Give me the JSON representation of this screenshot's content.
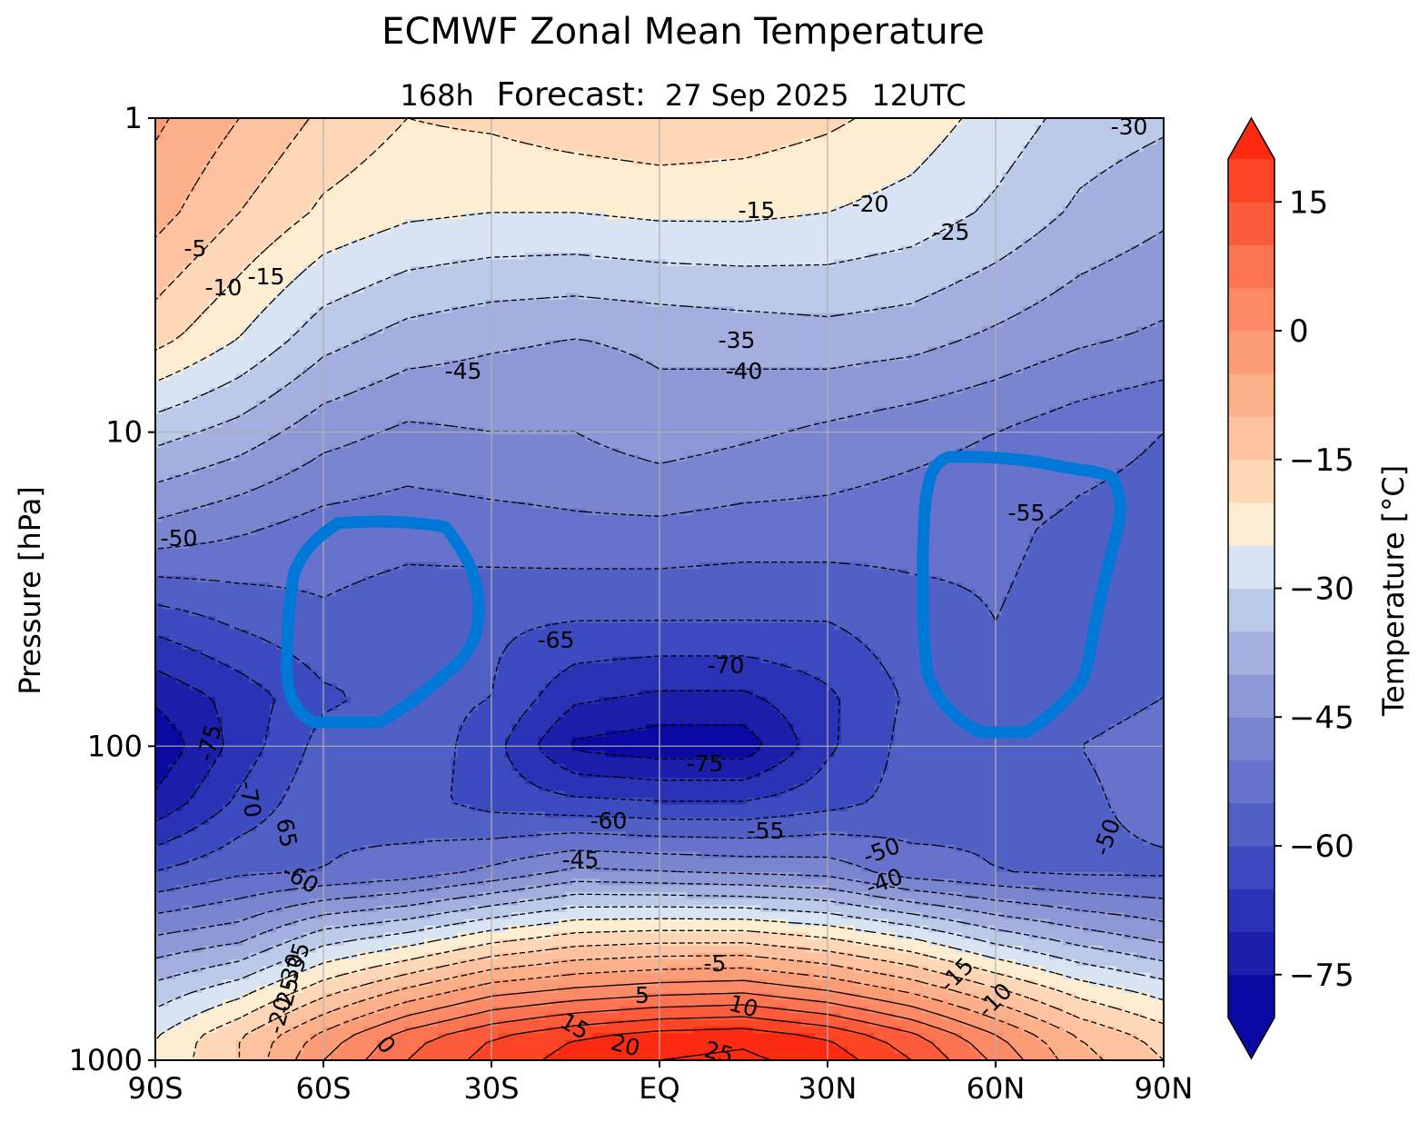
{
  "chart_data": {
    "type": "contour",
    "title": "ECMWF Zonal Mean Temperature",
    "subtitle": {
      "lead": "168h",
      "label": "Forecast:",
      "date": "27 Sep 2025",
      "time": "12UTC"
    },
    "xlabel": "",
    "ylabel": "Pressure [hPa]",
    "x_ticks": [
      "90S",
      "60S",
      "30S",
      "EQ",
      "30N",
      "60N",
      "90N"
    ],
    "x_values": [
      -90,
      -60,
      -30,
      0,
      30,
      60,
      90
    ],
    "y_ticks": [
      "1",
      "10",
      "100",
      "1000"
    ],
    "y_values": [
      1,
      10,
      100,
      1000
    ],
    "y_scale": "log",
    "grid": true,
    "colorbar": {
      "label": "Temperature [°C]",
      "min": -80,
      "max": 20,
      "step": 5,
      "extend": "both",
      "ticks": [
        15,
        0,
        -15,
        -30,
        -45,
        -60,
        -75
      ],
      "tick_labels": [
        "15",
        "0",
        "−15",
        "−30",
        "−45",
        "−60",
        "−75"
      ],
      "colors": [
        "#0a0aa3",
        "#1a1ea9",
        "#2a33b6",
        "#3c4bc0",
        "#5060c5",
        "#6672cb",
        "#7a85d0",
        "#8e98d6",
        "#a4aedf",
        "#bccae9",
        "#d8e4f4",
        "#fdedd1",
        "#fdd7b6",
        "#fdc2a0",
        "#fcb08a",
        "#fc9c77",
        "#fc8a66",
        "#fc7452",
        "#fc5c3c",
        "#fc4524"
      ],
      "extend_low_color": "#0a0aa3",
      "extend_high_color": "#fc2a10"
    },
    "temperature_grid": {
      "lat": [
        -90,
        -75,
        -60,
        -45,
        -30,
        -15,
        0,
        15,
        30,
        45,
        60,
        75,
        90
      ],
      "pressure_hpa": [
        1,
        2,
        5,
        10,
        20,
        40,
        70,
        100,
        150,
        250,
        400,
        600,
        850,
        1000
      ],
      "values": [
        [
          -4,
          -10,
          -16,
          -20,
          -19,
          -17,
          -16,
          -17,
          -19,
          -22,
          -27,
          -32,
          -34
        ],
        [
          -8,
          -15,
          -21,
          -24,
          -25,
          -25,
          -24,
          -24,
          -25,
          -27,
          -31,
          -36,
          -39
        ],
        [
          -18,
          -25,
          -33,
          -37,
          -39,
          -40,
          -39,
          -38,
          -37,
          -38,
          -41,
          -44,
          -46
        ],
        [
          -33,
          -37,
          -43,
          -46,
          -45,
          -45,
          -42,
          -44,
          -46,
          -48,
          -50,
          -53,
          -55
        ],
        [
          -46,
          -49,
          -52,
          -53,
          -52,
          -51,
          -51,
          -52,
          -52,
          -53,
          -54,
          -56,
          -57
        ],
        [
          -63,
          -59,
          -56,
          -58,
          -59,
          -60,
          -60,
          -60,
          -60,
          -57,
          -55,
          -57,
          -57
        ],
        [
          -74,
          -68,
          -61,
          -58,
          -60,
          -69,
          -71,
          -71,
          -66,
          -59,
          -56,
          -57,
          -55
        ],
        [
          -79,
          -68,
          -58,
          -56,
          -63,
          -76,
          -78,
          -78,
          -66,
          -58,
          -56,
          -55,
          -53
        ],
        [
          -74,
          -64,
          -56,
          -58,
          -62,
          -64,
          -65,
          -65,
          -62,
          -58,
          -56,
          -56,
          -53
        ],
        [
          -60,
          -56,
          -55,
          -53,
          -49,
          -44,
          -45,
          -46,
          -47,
          -53,
          -55,
          -56,
          -56
        ],
        [
          -45,
          -42,
          -33,
          -29,
          -23,
          -19,
          -18,
          -18,
          -21,
          -26,
          -33,
          -38,
          -42
        ],
        [
          -33,
          -27,
          -17,
          -9,
          -2,
          1,
          3,
          4,
          0,
          -6,
          -14,
          -22,
          -27
        ],
        [
          -25,
          -15,
          -3,
          8,
          15,
          20,
          23,
          24,
          20,
          12,
          1,
          -10,
          -17
        ],
        [
          -24,
          -15,
          0,
          10,
          17,
          22,
          25,
          26,
          23,
          15,
          4,
          -8,
          -15
        ]
      ]
    },
    "contour_labels": [
      "-30",
      "-15",
      "-20",
      "-25",
      "-5",
      "-10",
      "-15",
      "-35",
      "-45",
      "-40",
      "-50",
      "-55",
      "-65",
      "-70",
      "-75",
      "-75",
      "-70",
      "65",
      "-60",
      "-60",
      "-55",
      "-45",
      "-50",
      "-40",
      "-50",
      "-5",
      "5",
      "10",
      "15",
      "20",
      "25",
      "0",
      "-15",
      "-10",
      "-20",
      "-25",
      "-30",
      "-35"
    ],
    "annotations": [
      {
        "shape": "freehand-outline",
        "color": "#0078d7",
        "region": "around 60S–40S, 20–100 hPa"
      },
      {
        "shape": "freehand-outline",
        "color": "#0078d7",
        "region": "around 45N–80N, 12–110 hPa"
      }
    ]
  }
}
